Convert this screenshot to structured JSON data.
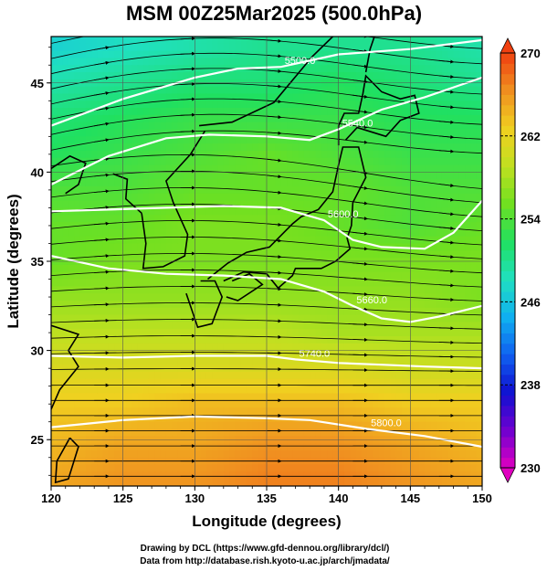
{
  "chart_data": {
    "type": "heatmap",
    "title": "MSM 00Z25Mar2025 (500.0hPa)",
    "xlabel": "Longitude (degrees)",
    "ylabel": "Latitude  (degrees)",
    "xlim": [
      120,
      150
    ],
    "ylim": [
      22.4,
      47.6
    ],
    "xticks": [
      120,
      125,
      130,
      135,
      140,
      145,
      150
    ],
    "yticks": [
      25,
      30,
      35,
      40,
      45
    ],
    "grid": true,
    "colorbar": {
      "min": 230,
      "max": 270,
      "ticks": [
        230,
        238,
        246,
        254,
        262,
        270
      ],
      "colors": [
        "#e000c0",
        "#7000d0",
        "#1010d0",
        "#1060f0",
        "#10b0f0",
        "#20e0c0",
        "#20e060",
        "#70e020",
        "#c0e020",
        "#f0d020",
        "#f09020",
        "#f04010"
      ]
    },
    "temperature_field": {
      "lat": [
        47,
        45,
        43,
        41,
        39,
        37,
        35,
        33,
        31,
        29,
        27,
        25,
        23
      ],
      "lon_west_to_east": [
        [
          247,
          248,
          249,
          250,
          250,
          250,
          249
        ],
        [
          249,
          250,
          251,
          251,
          252,
          251,
          250
        ],
        [
          251,
          252,
          253,
          253,
          253,
          252,
          252
        ],
        [
          252,
          253,
          254,
          255,
          254,
          253,
          253
        ],
        [
          254,
          254,
          255,
          255,
          255,
          254,
          254
        ],
        [
          255,
          255,
          256,
          256,
          255,
          254,
          255
        ],
        [
          255,
          256,
          256,
          256,
          256,
          256,
          256
        ],
        [
          257,
          257,
          257,
          257,
          257,
          257,
          256
        ],
        [
          259,
          259,
          259,
          259,
          258,
          258,
          258
        ],
        [
          261,
          261,
          261,
          261,
          261,
          260,
          260
        ],
        [
          263,
          263,
          264,
          264,
          264,
          263,
          263
        ],
        [
          264,
          265,
          265,
          266,
          266,
          265,
          264
        ],
        [
          265,
          266,
          266,
          267,
          267,
          266,
          265
        ]
      ]
    },
    "height_contours": [
      {
        "label": "5500.0",
        "lon": [
          120,
          125,
          130,
          133,
          136,
          140,
          145,
          150
        ],
        "lat": [
          42.6,
          44.1,
          45.3,
          45.8,
          45.9,
          46.6,
          46.9,
          47.4
        ]
      },
      {
        "label": "5540.0",
        "lon": [
          120,
          124,
          128,
          131,
          135,
          138,
          140,
          143,
          146,
          150
        ],
        "lat": [
          39.3,
          40.9,
          41.9,
          42.1,
          42.0,
          41.8,
          42.4,
          43.5,
          44.2,
          45.3
        ]
      },
      {
        "label": "5600.0",
        "lon": [
          120,
          124,
          128,
          132,
          136,
          139,
          141,
          143,
          146,
          148,
          150
        ],
        "lat": [
          37.8,
          37.9,
          38.0,
          38.1,
          38.0,
          37.3,
          36.2,
          35.8,
          35.7,
          36.6,
          38.4
        ]
      },
      {
        "label": "5660.0",
        "lon": [
          120,
          124,
          128,
          132,
          136,
          139,
          141,
          143,
          145,
          147,
          150
        ],
        "lat": [
          35.3,
          34.6,
          34.3,
          34.2,
          34.0,
          33.3,
          32.5,
          31.8,
          31.6,
          31.9,
          32.5
        ]
      },
      {
        "label": "5740.0",
        "lon": [
          120,
          125,
          130,
          135,
          137,
          140,
          143,
          146,
          150
        ],
        "lat": [
          29.7,
          29.6,
          29.7,
          29.7,
          29.5,
          29.3,
          29.2,
          29.1,
          29.0
        ]
      },
      {
        "label": "5800.0",
        "lon": [
          120,
          125,
          130,
          135,
          138,
          142,
          146,
          150
        ],
        "lat": [
          25.7,
          26.1,
          26.3,
          26.2,
          26.1,
          25.6,
          25.2,
          24.6
        ]
      }
    ]
  },
  "credits": {
    "line1": "Drawing by DCL (https://www.gfd-dennou.org/library/dcl/)",
    "line2": "Data from http://database.rish.kyoto-u.ac.jp/arch/jmadata/"
  }
}
